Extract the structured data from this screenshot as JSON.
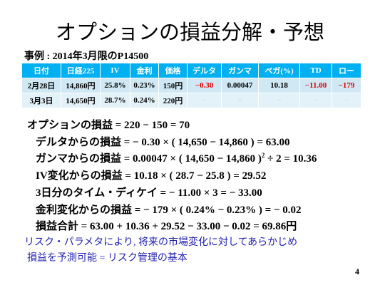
{
  "title": "オプションの損益分解・予想",
  "subtitle": "事例 : 2014年3月限のP14500",
  "table": {
    "header": [
      "日付",
      "日経225",
      "IV",
      "金利",
      "価格",
      "デルタ",
      "ガンマ",
      "ベガ(%)",
      "TD",
      "ロー"
    ],
    "rows": [
      [
        "2月28日",
        "14,860円",
        "25.8%",
        "0.23%",
        "150円",
        "−0.30",
        "0.00047",
        "10.18",
        "−11.00",
        "−179"
      ],
      [
        "3月3日",
        "14,650円",
        "28.7%",
        "0.24%",
        "220円",
        "−",
        "−",
        "−",
        "−",
        "−"
      ]
    ]
  },
  "formulas": [
    "オプションの損益 = 220 − 150 = 70",
    "デルタからの損益 = − 0.30 × ( 14,650 − 14,860 ) = 63.00",
    [
      "ガンマからの損益 = 0.00047 × ( 14,650 − 14,860 )",
      "2",
      " ÷ 2 = 10.36"
    ],
    "IV変化からの損益 = 10.18 × ( 28.7 − 25.8 ) = 29.52",
    "3日分のタイム・ディケイ = − 11.00 × 3 = − 33.00",
    "金利変化からの損益 = − 179 × ( 0.24% − 0.23% ) = − 0.02",
    "損益合計 = 63.00 + 10.36 + 29.52 − 33.00 − 0.02 = 69.86円"
  ],
  "conclusion": [
    "リスク・パラメタにより, 将来の市場変化に対してあらかじめ",
    "損益を予測可能 = リスク管理の基本"
  ],
  "page_number": "4"
}
